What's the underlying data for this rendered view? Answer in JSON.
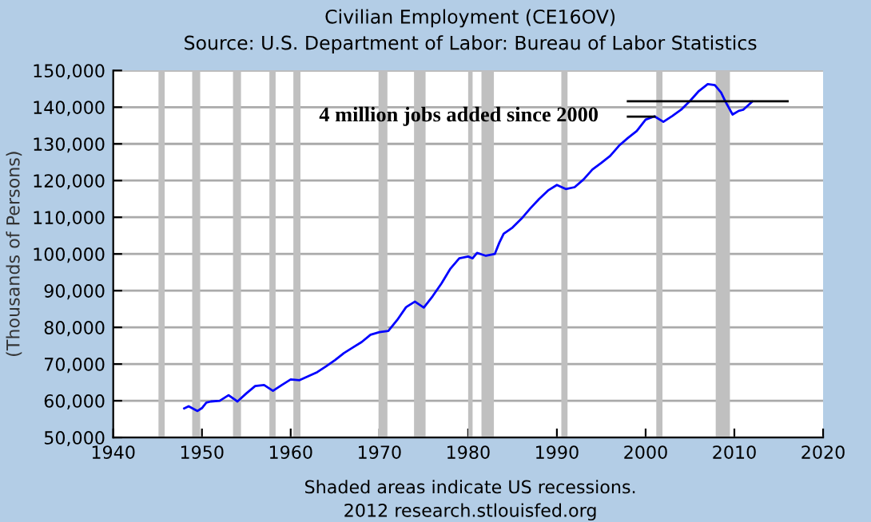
{
  "chart_data": {
    "type": "line",
    "title": "Civilian Employment (CE16OV)",
    "subtitle": "Source: U.S. Department of Labor: Bureau of Labor Statistics",
    "ylabel": "(Thousands of Persons)",
    "annotations": [
      "4 million jobs added since 2000",
      "Shaded areas indicate US recessions.",
      "2012 research.stlouisfed.org"
    ],
    "xlim": [
      1940,
      2020
    ],
    "xticks": [
      1940,
      1950,
      1960,
      1970,
      1980,
      1990,
      2000,
      2010,
      2020
    ],
    "ylim": [
      50000,
      150000
    ],
    "yticks": [
      {
        "value": 50000,
        "label": "50,000"
      },
      {
        "value": 60000,
        "label": "60,000"
      },
      {
        "value": 70000,
        "label": "70,000"
      },
      {
        "value": 80000,
        "label": "80,000"
      },
      {
        "value": 90000,
        "label": "90,000"
      },
      {
        "value": 100000,
        "label": "100,000"
      },
      {
        "value": 110000,
        "label": "110,000"
      },
      {
        "value": 120000,
        "label": "120,000"
      },
      {
        "value": 130000,
        "label": "130,000"
      },
      {
        "value": 140000,
        "label": "140,000"
      },
      {
        "value": 150000,
        "label": "150,000"
      }
    ],
    "grid": "y",
    "line_style": "solid",
    "marker": "none",
    "bands": [
      {
        "axis": "x",
        "from": 1945.1,
        "to": 1945.8,
        "color": "#c0c0c0"
      },
      {
        "axis": "x",
        "from": 1948.9,
        "to": 1949.8,
        "color": "#c0c0c0"
      },
      {
        "axis": "x",
        "from": 1953.5,
        "to": 1954.4,
        "color": "#c0c0c0"
      },
      {
        "axis": "x",
        "from": 1957.6,
        "to": 1958.3,
        "color": "#c0c0c0"
      },
      {
        "axis": "x",
        "from": 1960.3,
        "to": 1961.1,
        "color": "#c0c0c0"
      },
      {
        "axis": "x",
        "from": 1969.9,
        "to": 1970.9,
        "color": "#c0c0c0"
      },
      {
        "axis": "x",
        "from": 1973.9,
        "to": 1975.2,
        "color": "#c0c0c0"
      },
      {
        "axis": "x",
        "from": 1980.0,
        "to": 1980.5,
        "color": "#c0c0c0"
      },
      {
        "axis": "x",
        "from": 1981.5,
        "to": 1982.9,
        "color": "#c0c0c0"
      },
      {
        "axis": "x",
        "from": 1990.5,
        "to": 1991.2,
        "color": "#c0c0c0"
      },
      {
        "axis": "x",
        "from": 2001.2,
        "to": 2001.9,
        "color": "#c0c0c0"
      },
      {
        "axis": "x",
        "from": 2007.9,
        "to": 2009.5,
        "color": "#c0c0c0"
      }
    ],
    "series": [
      {
        "color": "#0000ff",
        "x": [
          1948.0,
          1948.5,
          1949.5,
          1950.0,
          1950.5,
          1951,
          1952,
          1953,
          1954,
          1955,
          1956,
          1957,
          1958,
          1959,
          1960,
          1961,
          1962,
          1963,
          1964,
          1965,
          1966,
          1967,
          1968,
          1969,
          1970,
          1971,
          1972,
          1973,
          1974,
          1975,
          1976,
          1977,
          1978,
          1979,
          1980,
          1980.5,
          1981,
          1982,
          1983,
          1983.5,
          1984,
          1985,
          1986,
          1987,
          1988,
          1989,
          1990,
          1991,
          1992,
          1993,
          1994,
          1995,
          1996,
          1997,
          1998,
          1999,
          2000,
          2001,
          2002,
          2003,
          2004,
          2005,
          2006,
          2007,
          2007.8,
          2008.5,
          2009,
          2009.8,
          2010.5,
          2011,
          2012
        ],
        "values": [
          57900,
          58500,
          57200,
          58000,
          59500,
          59800,
          60000,
          61500,
          59800,
          62000,
          64000,
          64300,
          62700,
          64300,
          65800,
          65600,
          66700,
          67800,
          69400,
          71100,
          73000,
          74500,
          76000,
          78000,
          78700,
          79000,
          82000,
          85500,
          87000,
          85400,
          88500,
          92000,
          96000,
          98800,
          99300,
          98800,
          100300,
          99500,
          100000,
          103000,
          105500,
          107200,
          109600,
          112400,
          115000,
          117300,
          118800,
          117700,
          118200,
          120300,
          123000,
          124800,
          126700,
          129500,
          131600,
          133500,
          136600,
          137500,
          136000,
          137600,
          139300,
          141700,
          144400,
          146300,
          146000,
          144000,
          141500,
          138000,
          139000,
          139300,
          141500
        ]
      },
      {
        "color": "#000000",
        "x": [
          1998,
          2001
        ],
        "values": [
          137400,
          137400
        ]
      },
      {
        "color": "#000000",
        "x": [
          1998,
          2016
        ],
        "values": [
          141600,
          141600
        ]
      }
    ]
  }
}
